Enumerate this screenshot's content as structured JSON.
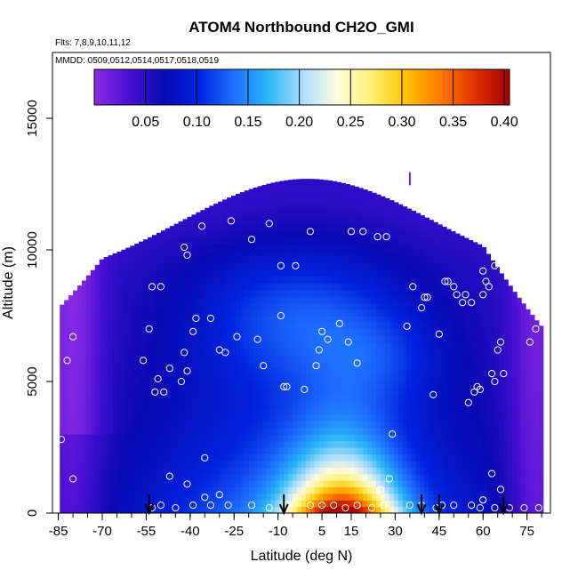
{
  "chart_data": {
    "type": "heatmap",
    "title": "ATOM4 Northbound CH2O_GMI",
    "flights_label": "Flts: 7,8,9,10,11,12",
    "dates_label": "MMDD: 0509,0512,0514,0517,0518,0519",
    "xlabel": "Latitude (deg N)",
    "ylabel": "Altitude (m)",
    "xlim": [
      -87,
      83
    ],
    "ylim": [
      0,
      17500
    ],
    "x_ticks": [
      -85,
      -70,
      -55,
      -40,
      -25,
      -10,
      5,
      15,
      30,
      45,
      60,
      75
    ],
    "y_ticks": [
      0,
      5000,
      10000,
      15000
    ],
    "colorbar": {
      "range": [
        0.0,
        0.405
      ],
      "ticks": [
        0.05,
        0.1,
        0.15,
        0.2,
        0.25,
        0.3,
        0.35,
        0.4
      ],
      "tick_labels": [
        "0.05",
        "0.10",
        "0.15",
        "0.20",
        "0.25",
        "0.30",
        "0.35",
        "0.40"
      ],
      "colors": [
        "#8a2be2",
        "#4b10d4",
        "#0a0ab4",
        "#0022dd",
        "#1e6cff",
        "#29b6f6",
        "#a8dcff",
        "#fffbe0",
        "#fff176",
        "#ffc300",
        "#ff7a00",
        "#e03000",
        "#a40000"
      ]
    },
    "profile_latitudes": [
      -54,
      -8,
      39,
      45,
      67
    ],
    "sample_points": [
      [
        -85,
        10100
      ],
      [
        -83,
        10100
      ],
      [
        -86,
        7000
      ],
      [
        -80,
        6700
      ],
      [
        -82,
        5800
      ],
      [
        -86,
        3500
      ],
      [
        -78,
        10600
      ],
      [
        -76,
        10700
      ],
      [
        -74,
        11300
      ],
      [
        -72,
        11400
      ],
      [
        -68,
        11700
      ],
      [
        -53,
        8600
      ],
      [
        -50,
        8600
      ],
      [
        -54,
        7000
      ],
      [
        -56,
        5800
      ],
      [
        -52,
        4600
      ],
      [
        -49,
        4600
      ],
      [
        -51,
        5100
      ],
      [
        -47,
        5500
      ],
      [
        -43,
        5000
      ],
      [
        -41,
        5400
      ],
      [
        -42,
        6100
      ],
      [
        -39,
        6900
      ],
      [
        -38,
        7400
      ],
      [
        -41,
        9800
      ],
      [
        -42,
        10100
      ],
      [
        -36,
        10900
      ],
      [
        -33,
        7400
      ],
      [
        -30,
        6200
      ],
      [
        -28,
        6100
      ],
      [
        -24,
        6700
      ],
      [
        -26,
        11100
      ],
      [
        -19,
        10400
      ],
      [
        -13,
        11000
      ],
      [
        -17,
        6600
      ],
      [
        -15,
        5600
      ],
      [
        -9,
        7500
      ],
      [
        -8,
        4800
      ],
      [
        -7,
        4800
      ],
      [
        -9,
        9400
      ],
      [
        -4,
        9400
      ],
      [
        1,
        10700
      ],
      [
        -1,
        4700
      ],
      [
        3,
        5600
      ],
      [
        4,
        6200
      ],
      [
        5,
        6900
      ],
      [
        7,
        6600
      ],
      [
        11,
        7200
      ],
      [
        14,
        6500
      ],
      [
        15,
        10700
      ],
      [
        17,
        5700
      ],
      [
        19,
        10700
      ],
      [
        24,
        10500
      ],
      [
        27,
        10500
      ],
      [
        29,
        3000
      ],
      [
        34,
        7100
      ],
      [
        36,
        8600
      ],
      [
        39,
        7800
      ],
      [
        40,
        8200
      ],
      [
        41,
        8200
      ],
      [
        43,
        4500
      ],
      [
        45,
        6800
      ],
      [
        47,
        8800
      ],
      [
        48,
        8800
      ],
      [
        50,
        8600
      ],
      [
        51,
        8300
      ],
      [
        53,
        8000
      ],
      [
        54,
        8300
      ],
      [
        56,
        8000
      ],
      [
        55,
        4200
      ],
      [
        57,
        4600
      ],
      [
        58,
        4800
      ],
      [
        59,
        4700
      ],
      [
        60,
        8300
      ],
      [
        60,
        9200
      ],
      [
        61,
        8800
      ],
      [
        62,
        8600
      ],
      [
        63,
        5300
      ],
      [
        64,
        5000
      ],
      [
        64,
        9400
      ],
      [
        65,
        6200
      ],
      [
        66,
        6500
      ],
      [
        67,
        5300
      ],
      [
        70,
        10700
      ],
      [
        71,
        10900
      ],
      [
        72,
        10800
      ],
      [
        73,
        11000
      ],
      [
        74,
        10200
      ],
      [
        75,
        9900
      ],
      [
        76,
        6500
      ],
      [
        77,
        9400
      ],
      [
        78,
        7000
      ],
      [
        79,
        9600
      ],
      [
        80,
        8200
      ],
      [
        82,
        5000
      ],
      [
        -47,
        1400
      ],
      [
        -41,
        1100
      ],
      [
        -35,
        600
      ],
      [
        -33,
        300
      ],
      [
        -27,
        300
      ],
      [
        -19,
        300
      ],
      [
        -13,
        200
      ],
      [
        -7,
        300
      ],
      [
        1,
        300
      ],
      [
        5,
        300
      ],
      [
        9,
        300
      ],
      [
        13,
        200
      ],
      [
        17,
        300
      ],
      [
        22,
        200
      ],
      [
        26,
        300
      ],
      [
        35,
        300
      ],
      [
        39,
        300
      ],
      [
        44,
        200
      ],
      [
        46,
        300
      ],
      [
        50,
        300
      ],
      [
        56,
        300
      ],
      [
        59,
        200
      ],
      [
        64,
        200
      ],
      [
        69,
        200
      ],
      [
        74,
        200
      ],
      [
        79,
        200
      ],
      [
        -53,
        200
      ],
      [
        -50,
        300
      ],
      [
        -45,
        200
      ],
      [
        -39,
        300
      ],
      [
        -80,
        1300
      ],
      [
        -84,
        2800
      ],
      [
        60,
        500
      ],
      [
        66,
        900
      ],
      [
        63,
        1500
      ],
      [
        -35,
        2100
      ],
      [
        -30,
        700
      ],
      [
        25,
        900
      ],
      [
        28,
        1300
      ]
    ]
  }
}
